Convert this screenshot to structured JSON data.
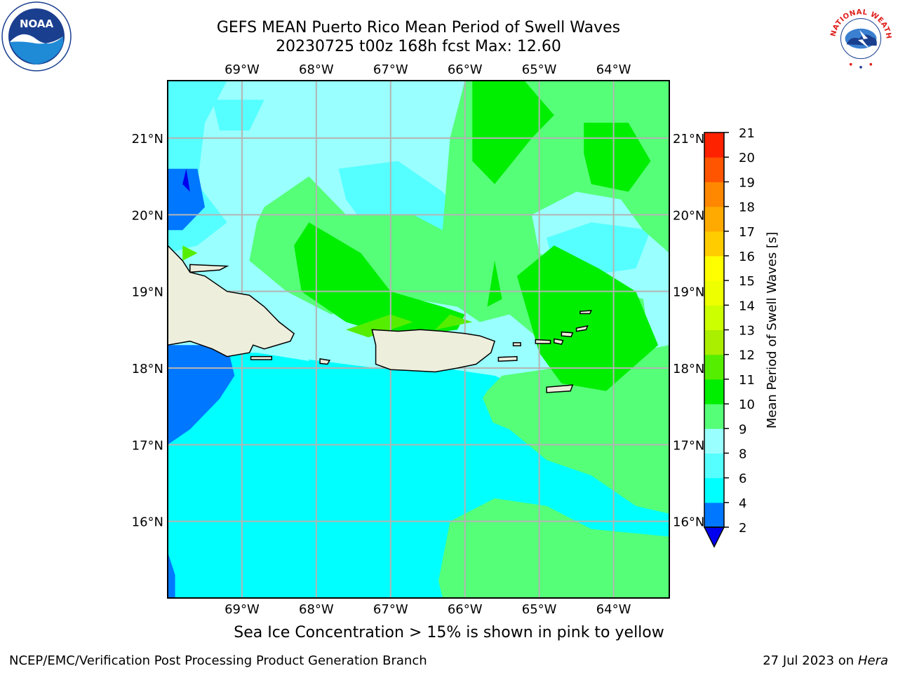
{
  "header": {
    "title_line1": "GEFS MEAN Puerto Rico Mean Period of Swell Waves",
    "title_line2": "20230725 t00z 168h fcst   Max: 12.60"
  },
  "map": {
    "lon_range": [
      -70,
      -63.25
    ],
    "lat_range": [
      15,
      21.75
    ],
    "lon_ticks": [
      {
        "value": -69,
        "label": "69°W"
      },
      {
        "value": -68,
        "label": "68°W"
      },
      {
        "value": -67,
        "label": "67°W"
      },
      {
        "value": -66,
        "label": "66°W"
      },
      {
        "value": -65,
        "label": "65°W"
      },
      {
        "value": -64,
        "label": "64°W"
      }
    ],
    "lat_ticks": [
      {
        "value": 21,
        "label": "21°N"
      },
      {
        "value": 20,
        "label": "20°N"
      },
      {
        "value": 19,
        "label": "19°N"
      },
      {
        "value": 18,
        "label": "18°N"
      },
      {
        "value": 17,
        "label": "17°N"
      },
      {
        "value": 16,
        "label": "16°N"
      }
    ],
    "colors": {
      "ocean_base": "#00FFFF",
      "land": "#EEEEDD",
      "grid": "#B4B4B4",
      "coast": "#000000"
    }
  },
  "colorbar": {
    "label": "Mean Period of Swell Waves [s]",
    "levels": [
      2,
      4,
      6,
      8,
      9,
      10,
      11,
      12,
      13,
      14,
      15,
      16,
      17,
      18,
      19,
      20,
      21
    ],
    "colors": [
      "#0077FF",
      "#00FFFF",
      "#55FFFF",
      "#99FFFF",
      "#55FF77",
      "#00EE00",
      "#55EE00",
      "#AAEE00",
      "#CCFF00",
      "#EEFF00",
      "#FFFF00",
      "#FFCC00",
      "#FFAA00",
      "#FF8800",
      "#FF5500",
      "#FF2200"
    ],
    "under_color": "#0000EE"
  },
  "footer": {
    "note": "Sea Ice Concentration > 15% is shown in pink to yellow",
    "credit": "NCEP/EMC/Verification Post Processing Product Generation Branch",
    "date": "27 Jul 2023 on",
    "host": "Hera"
  },
  "logos": {
    "noaa_text": "NOAA",
    "nws_text": "NATIONAL WEATHER SERVICE"
  }
}
